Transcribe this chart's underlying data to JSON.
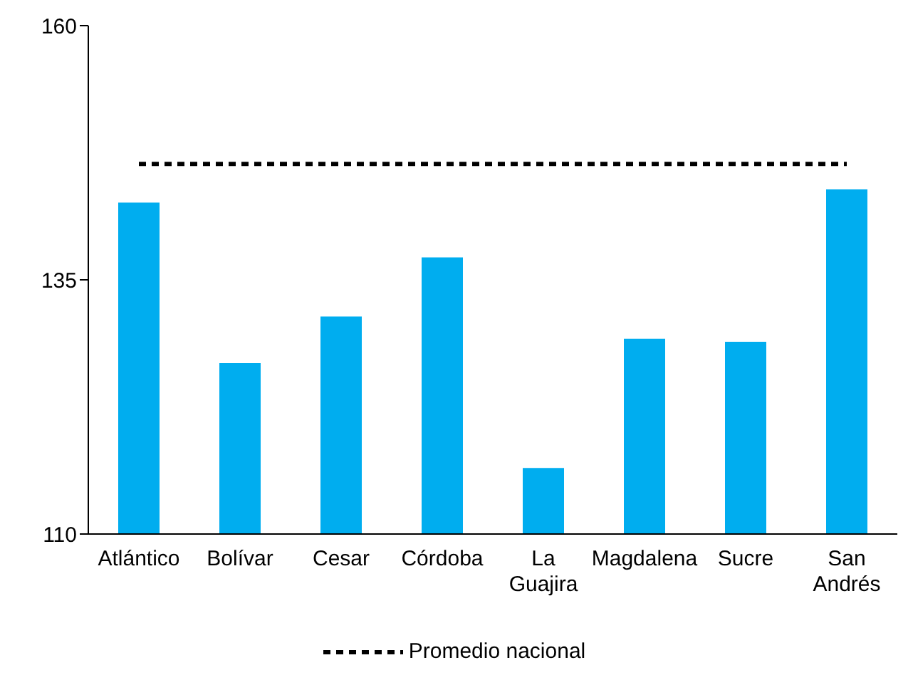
{
  "chart_data": {
    "type": "bar",
    "categories": [
      "Atlántico",
      "Bolívar",
      "Cesar",
      "Córdoba",
      "La Guajira",
      "Magdalena",
      "Sucre",
      "San Andrés"
    ],
    "series": [
      {
        "color": "#00adef",
        "values": [
          142.6,
          126.8,
          131.4,
          137.2,
          116.5,
          129.2,
          128.9,
          143.9
        ]
      },
      {
        "type": "line",
        "name": "Promedio nacional",
        "color": "#000000",
        "line_style": "dotted",
        "values": [
          146.4,
          146.4,
          146.4,
          146.4,
          146.4,
          146.4,
          146.4,
          146.4
        ]
      }
    ],
    "ylim": [
      110,
      160
    ],
    "yticks": [
      110,
      135,
      160
    ],
    "grid": false,
    "legend": "bottom",
    "marker": "none"
  }
}
